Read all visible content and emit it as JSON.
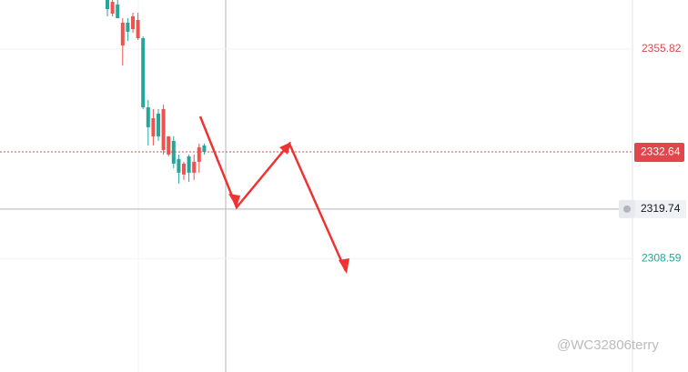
{
  "chart_data": {
    "type": "candlestick",
    "categories": [
      null,
      null,
      null,
      null,
      null,
      null,
      null,
      null,
      null,
      null,
      null,
      null,
      null,
      null,
      null,
      null,
      null,
      null,
      null,
      null
    ],
    "open": [
      2366.89,
      2363.82,
      2365.87,
      2356.64,
      2361.77,
      2360.33,
      2358.28,
      2358.28,
      2342.7,
      2336.14,
      2341.27,
      2333.06,
      2332.04,
      2335.12,
      2331.02,
      2327.53,
      2331.63,
      2327.94,
      2330.4,
      2334.09
    ],
    "high": [
      2366.89,
      2366.89,
      2366.89,
      2362.79,
      2362.79,
      2364.02,
      2364.02,
      2358.69,
      2344.34,
      2342.29,
      2342.29,
      2343.32,
      2336.14,
      2336.14,
      2332.04,
      2330.4,
      2332.04,
      2332.04,
      2334.5,
      2334.5
    ],
    "low": [
      2363.2,
      2363.2,
      2362.79,
      2352.13,
      2357.67,
      2359.51,
      2357.87,
      2342.29,
      2334.09,
      2334.09,
      2335.12,
      2332.04,
      2331.63,
      2328.97,
      2325.48,
      2326.3,
      2325.89,
      2326.3,
      2327.94,
      2332.04
    ],
    "close": [
      2364.84,
      2366.48,
      2362.79,
      2361.77,
      2359.72,
      2363.2,
      2362.38,
      2342.7,
      2338.19,
      2340.24,
      2336.14,
      2342.29,
      2336.14,
      2329.99,
      2327.94,
      2329.99,
      2327.94,
      2330.4,
      2333.68,
      2332.64
    ],
    "up_color": "#ef5350",
    "down_color": "#26a69a",
    "ylim": [
      2283,
      2366.89
    ],
    "yticks": [
      2355.82,
      2308.59
    ],
    "ytick_colors": [
      "#e0474c",
      "#26a69a"
    ],
    "last_price": 2332.64,
    "last_price_color": "#e0474c",
    "crosshair_price": 2319.74,
    "watermark": "@WC32806terry"
  }
}
